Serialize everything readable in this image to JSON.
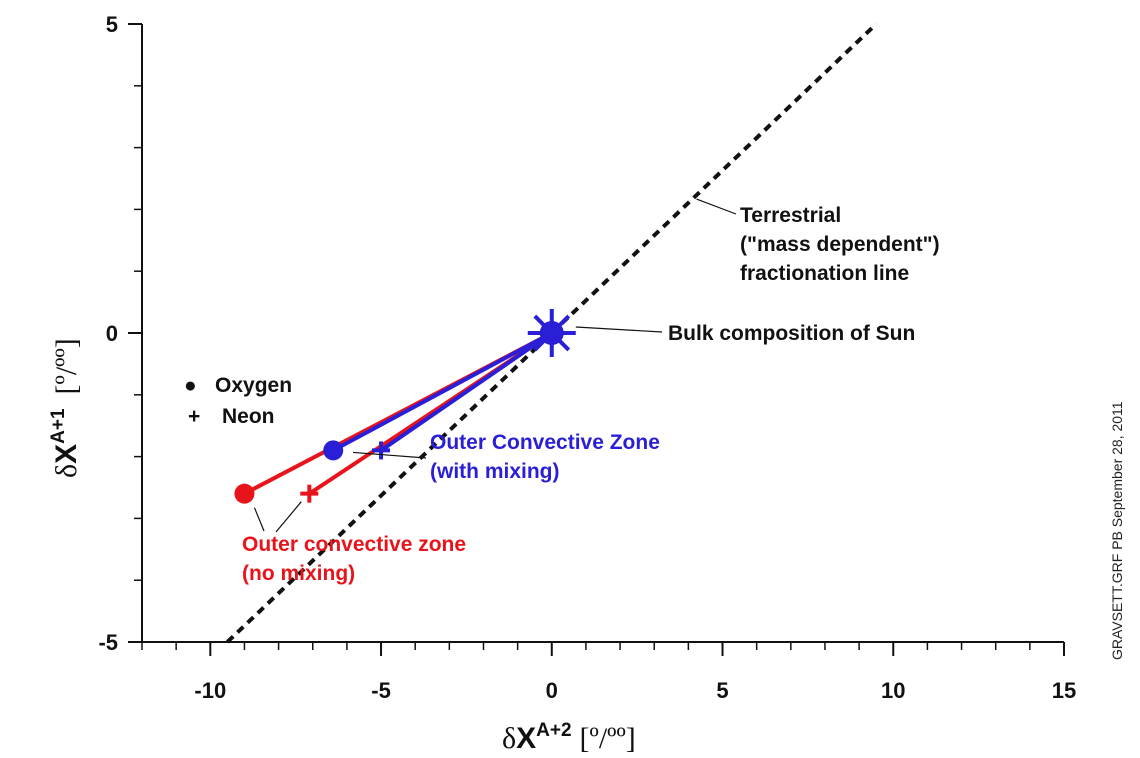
{
  "chart_data": {
    "type": "scatter",
    "xlim": [
      -12,
      15
    ],
    "ylim": [
      -5,
      5
    ],
    "xticks": [
      "-10",
      "-5",
      "0",
      "5",
      "10",
      "15"
    ],
    "xtick_values": [
      -10,
      -5,
      0,
      5,
      10,
      15
    ],
    "yticks": [
      "5",
      "0",
      "-5"
    ],
    "ytick_values": [
      5,
      0,
      -5
    ],
    "xlabel": {
      "delta": "δ",
      "var": "X",
      "sup": "A+2",
      "unit": "[º/ºº]"
    },
    "ylabel": {
      "delta": "δ",
      "var": "X",
      "sup": "A+1",
      "unit": "[º/ºº]"
    },
    "grid": false,
    "legend": {
      "position": "left",
      "entries": [
        {
          "symbol": "●",
          "label": "Oxygen"
        },
        {
          "symbol": "+",
          "label": "Neon"
        }
      ]
    },
    "terrestrial_line": {
      "x": [
        -9.5,
        9.5
      ],
      "y": [
        -5,
        5
      ]
    },
    "sun": {
      "x": 0,
      "y": 0
    },
    "series": [
      {
        "group": "no-mixing",
        "element": "oxygen",
        "color": "#e8141b",
        "points": [
          [
            -9.0,
            -2.6
          ],
          [
            0,
            0
          ]
        ]
      },
      {
        "group": "no-mixing",
        "element": "neon",
        "color": "#e8141b",
        "points": [
          [
            -7.1,
            -2.6
          ],
          [
            0,
            0
          ]
        ]
      },
      {
        "group": "with-mixing",
        "element": "oxygen",
        "color": "#2a1fd6",
        "points": [
          [
            -6.4,
            -1.9
          ],
          [
            0,
            0
          ]
        ]
      },
      {
        "group": "with-mixing",
        "element": "neon",
        "color": "#2a1fd6",
        "points": [
          [
            -5.0,
            -1.9
          ],
          [
            0,
            0
          ]
        ]
      }
    ],
    "annotations": {
      "terrestrial": [
        "Terrestrial",
        "(\"mass dependent\")",
        "fractionation line"
      ],
      "sun": "Bulk composition of Sun",
      "with_mixing": [
        "Outer Convective Zone",
        "(with mixing)"
      ],
      "no_mixing": [
        "Outer convective zone",
        "(no mixing)"
      ]
    },
    "side_note": "GRAVSETT.GRF   PB  September 28, 2011"
  },
  "colors": {
    "red": "#e8141b",
    "blue": "#2a1fd6",
    "axis": "#111111"
  }
}
